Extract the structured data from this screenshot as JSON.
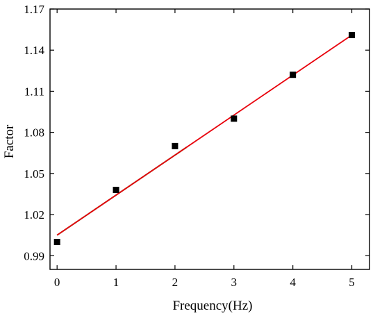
{
  "chart_data": {
    "type": "scatter",
    "xlabel": "Frequency(Hz)",
    "ylabel": "Factor",
    "xlim": [
      -0.12,
      5.3
    ],
    "ylim": [
      0.98,
      1.17
    ],
    "x_ticks": [
      "0",
      "1",
      "2",
      "3",
      "4",
      "5"
    ],
    "y_ticks": [
      "0.99",
      "1.02",
      "1.05",
      "1.08",
      "1.11",
      "1.14",
      "1.17"
    ],
    "grid": false,
    "legend": "none",
    "series": [
      {
        "type": "scatter",
        "marker": "square",
        "color": "#000000",
        "points": [
          {
            "x": 0,
            "y": 1.0
          },
          {
            "x": 1,
            "y": 1.038
          },
          {
            "x": 2,
            "y": 1.07
          },
          {
            "x": 3,
            "y": 1.09
          },
          {
            "x": 4,
            "y": 1.122
          },
          {
            "x": 5,
            "y": 1.151
          }
        ]
      },
      {
        "type": "line",
        "fit": "linear",
        "color": "#e8000b",
        "shadow_color": "#4a6a1a",
        "x_range": [
          0,
          5
        ],
        "intercept": 1.005,
        "slope": 0.0292
      }
    ]
  }
}
